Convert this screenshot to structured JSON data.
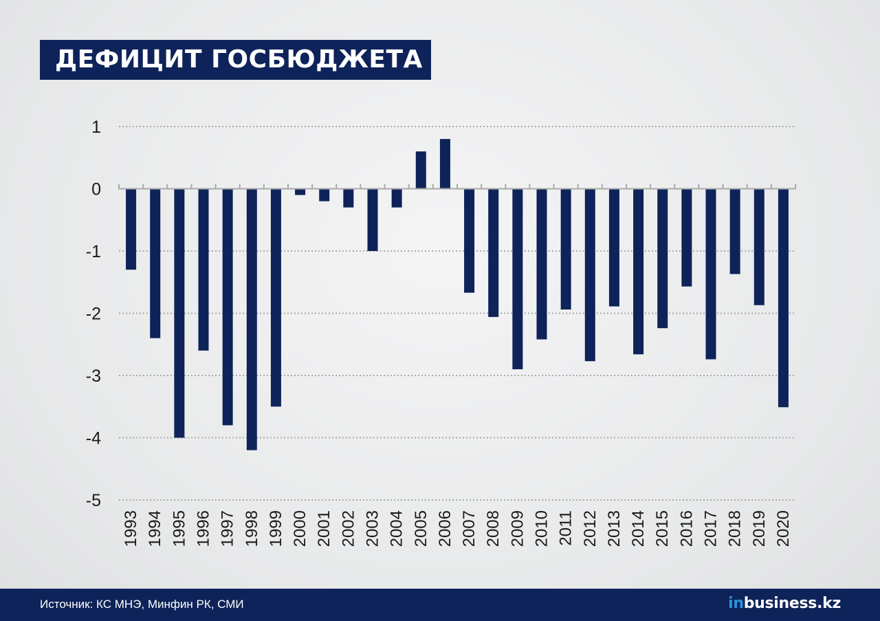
{
  "title": "ДЕФИЦИТ ГОСБЮДЖЕТА",
  "source": "Источник: КС МНЭ, Минфин РК, СМИ",
  "logo": {
    "prefix": "in",
    "rest": "business.kz"
  },
  "colors": {
    "bar": "#0e2359",
    "title_bg": "#0e2359",
    "footer_bg": "#0e2359",
    "grid": "#a9a9a9",
    "logo_accent": "#2f8fe0"
  },
  "chart_data": {
    "type": "bar",
    "title": "ДЕФИЦИТ ГОСБЮДЖЕТА",
    "xlabel": "",
    "ylabel": "",
    "ylim": [
      -5,
      1
    ],
    "yticks": [
      1,
      0,
      -1,
      -2,
      -3,
      -4,
      -5
    ],
    "grid": true,
    "categories": [
      "1993",
      "1994",
      "1995",
      "1996",
      "1997",
      "1998",
      "1999",
      "2000",
      "2001",
      "2002",
      "2003",
      "2004",
      "2005",
      "2006",
      "2007",
      "2008",
      "2009",
      "2010",
      "2011",
      "2012",
      "2013",
      "2014",
      "2015",
      "2016",
      "2017",
      "2018",
      "2019",
      "2020"
    ],
    "values": [
      -1.3,
      -2.4,
      -4.0,
      -2.6,
      -3.8,
      -4.2,
      -3.5,
      -0.1,
      -0.2,
      -0.3,
      -1.0,
      -0.3,
      0.6,
      0.8,
      -1.67,
      -2.06,
      -2.9,
      -2.42,
      -1.94,
      -2.77,
      -1.89,
      -2.66,
      -2.24,
      -1.57,
      -2.74,
      -1.37,
      -1.87,
      -3.51
    ]
  }
}
